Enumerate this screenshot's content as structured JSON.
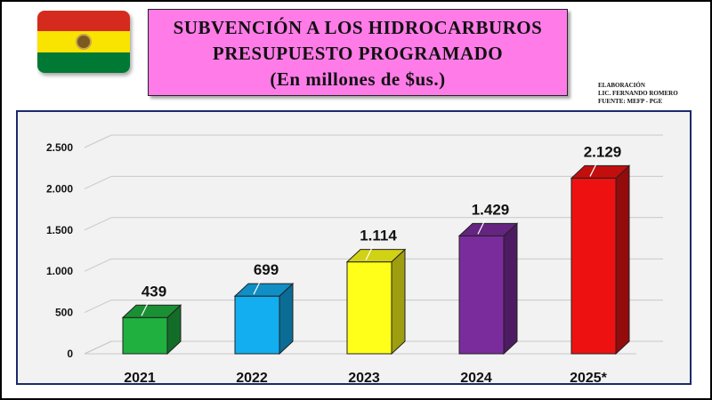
{
  "flag": {
    "colors": [
      "#d52b1e",
      "#f9e300",
      "#007934"
    ],
    "icon": "bolivia-flag-icon"
  },
  "header": {
    "line1": "SUBVENCIÓN A LOS HIDROCARBUROS",
    "line2": "PRESUPUESTO PROGRAMADO",
    "line3": "(En millones de $us.)"
  },
  "credits": {
    "line1": "ELABORACIÓN",
    "line2": "LIC. FERNANDO ROMERO",
    "line3": "FUENTE: MEFP - PGE"
  },
  "chart_data": {
    "type": "bar",
    "style": "3d",
    "categories": [
      "2021",
      "2022",
      "2023",
      "2024",
      "2025*"
    ],
    "values": [
      439,
      699,
      1114,
      1429,
      2129
    ],
    "value_labels": [
      "439",
      "699",
      "1.114",
      "1.429",
      "2.129"
    ],
    "colors": [
      "#1fb040",
      "#12aef0",
      "#ffff1a",
      "#7a2c9c",
      "#ee1111"
    ],
    "ylim": [
      0,
      2500
    ],
    "yticks": [
      0,
      500,
      1000,
      1500,
      2000,
      2500
    ],
    "ytick_labels": [
      "0",
      "500",
      "1.000",
      "1.500",
      "2.000",
      "2.500"
    ],
    "grid": true,
    "legend": false
  }
}
